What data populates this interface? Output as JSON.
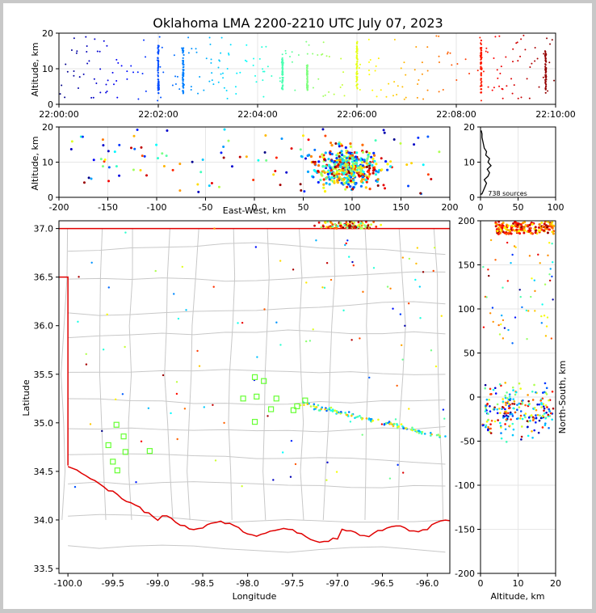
{
  "title": "Oklahoma LMA 2200-2210 UTC July 07, 2023",
  "chart_data": [
    {
      "panel": "altitude-vs-time",
      "type": "scatter",
      "ylabel": "Altitude, km",
      "ylim": [
        0,
        20
      ],
      "yticks": [
        "0",
        "10",
        "20"
      ],
      "xlim": [
        "22:00:00",
        "22:10:00"
      ],
      "xticks": [
        "22:00:00",
        "22:02:00",
        "22:04:00",
        "22:06:00",
        "22:08:00",
        "22:10:00"
      ],
      "color_encoding": "time (blue to red)",
      "clusters": [
        {
          "time_min": 2.0,
          "alt_km": [
            3,
            17
          ]
        },
        {
          "time_min": 2.5,
          "alt_km": [
            3,
            16
          ]
        },
        {
          "time_min": 4.5,
          "alt_km": [
            4,
            13
          ]
        },
        {
          "time_min": 5.0,
          "alt_km": [
            4,
            11
          ]
        },
        {
          "time_min": 6.0,
          "alt_km": [
            4,
            18
          ]
        },
        {
          "time_min": 8.5,
          "alt_km": [
            3,
            18
          ]
        },
        {
          "time_min": 9.8,
          "alt_km": [
            3,
            15
          ]
        }
      ]
    },
    {
      "panel": "altitude-vs-east-west",
      "type": "scatter",
      "xlabel": "East-West, km",
      "ylabel": "Altitude, km",
      "xlim": [
        -200,
        200
      ],
      "ylim": [
        0,
        20
      ],
      "xticks": [
        "-200",
        "-150",
        "-100",
        "-50",
        "0",
        "50",
        "100",
        "150",
        "200"
      ],
      "yticks": [
        "0",
        "10",
        "20"
      ]
    },
    {
      "panel": "altitude-histogram",
      "type": "line",
      "xlim": [
        0,
        100
      ],
      "ylim": [
        0,
        20
      ],
      "xticks": [
        "0",
        "50",
        "100"
      ],
      "yticks": [
        "0",
        "10",
        "20"
      ],
      "annotation": "738 sources",
      "profile": [
        [
          0,
          0.8
        ],
        [
          2,
          1
        ],
        [
          4,
          2
        ],
        [
          6,
          3
        ],
        [
          8,
          4
        ],
        [
          5,
          5
        ],
        [
          10,
          6
        ],
        [
          12,
          7
        ],
        [
          9,
          8
        ],
        [
          14,
          9
        ],
        [
          10,
          10
        ],
        [
          12,
          11
        ],
        [
          7,
          12
        ],
        [
          8,
          13
        ],
        [
          5,
          14
        ],
        [
          4,
          15
        ],
        [
          3,
          16
        ],
        [
          2,
          17
        ],
        [
          2,
          18
        ],
        [
          1,
          19
        ]
      ]
    },
    {
      "panel": "plan-view-map",
      "type": "scatter",
      "xlabel": "Longitude",
      "ylabel": "Latitude",
      "xlim": [
        -100.1,
        -95.75
      ],
      "ylim": [
        33.45,
        37.08
      ],
      "xticks": [
        "-100.0",
        "-99.5",
        "-99.0",
        "-98.5",
        "-98.0",
        "-97.5",
        "-97.0",
        "-96.5",
        "-96.0"
      ],
      "yticks": [
        "33.5",
        "34.0",
        "34.5",
        "35.0",
        "35.5",
        "36.0",
        "36.5",
        "37.0"
      ],
      "stations": [
        [
          -99.55,
          34.77
        ],
        [
          -99.46,
          34.98
        ],
        [
          -99.38,
          34.86
        ],
        [
          -99.36,
          34.7
        ],
        [
          -99.5,
          34.6
        ],
        [
          -99.45,
          34.51
        ],
        [
          -99.09,
          34.71
        ],
        [
          -97.92,
          35.47
        ],
        [
          -97.82,
          35.43
        ],
        [
          -97.9,
          35.27
        ],
        [
          -97.92,
          35.01
        ],
        [
          -97.74,
          35.14
        ],
        [
          -97.68,
          35.25
        ],
        [
          -97.49,
          35.13
        ],
        [
          -97.36,
          35.23
        ],
        [
          -97.45,
          35.17
        ],
        [
          -98.05,
          35.25
        ]
      ]
    },
    {
      "panel": "north-south-vs-altitude",
      "type": "scatter",
      "xlabel": "Altitude, km",
      "ylabel": "North-South, km",
      "xlim": [
        0,
        20
      ],
      "ylim": [
        -200,
        200
      ],
      "xticks": [
        "0",
        "10",
        "20"
      ],
      "yticks": [
        "-200",
        "-150",
        "-100",
        "-50",
        "0",
        "50",
        "100",
        "150",
        "200"
      ]
    }
  ]
}
